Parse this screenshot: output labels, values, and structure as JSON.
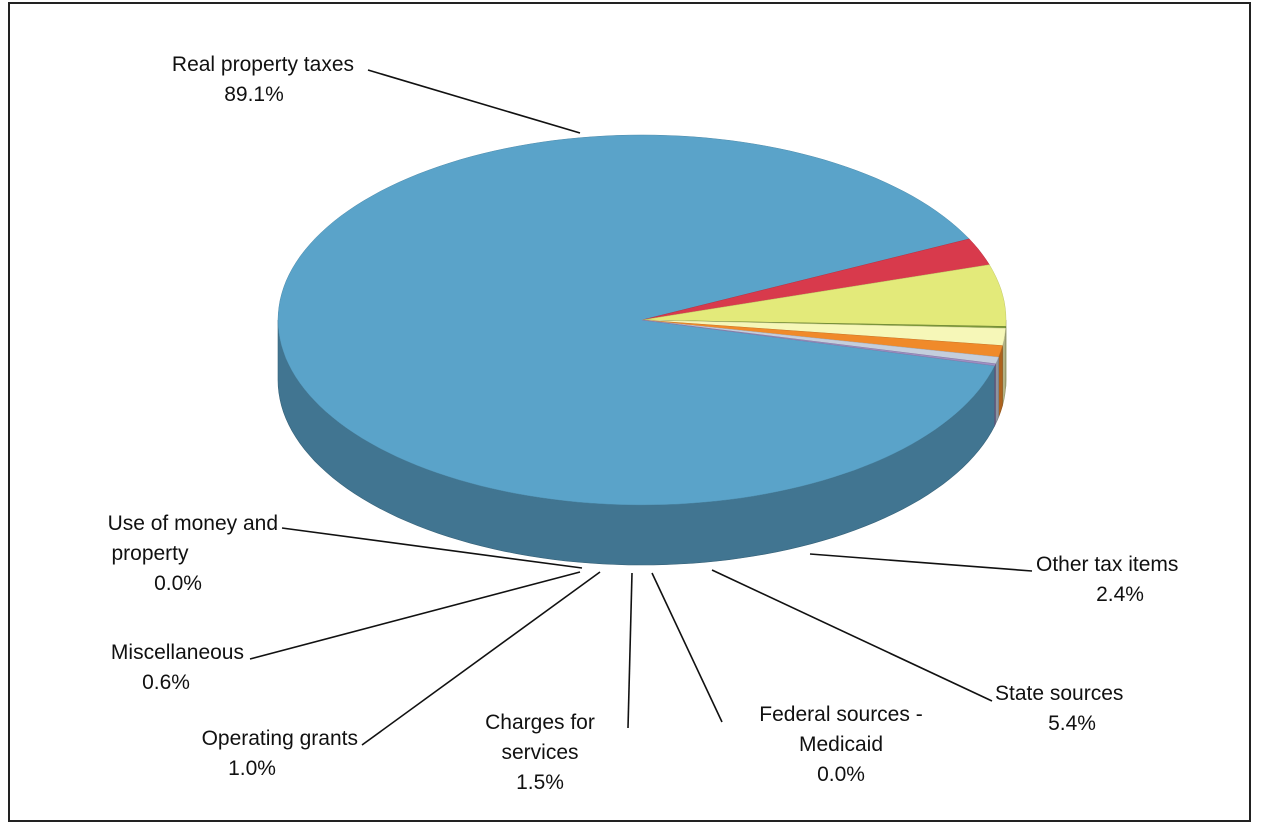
{
  "chart_data": {
    "type": "pie",
    "style": "3d",
    "slices": [
      {
        "label": "Real property taxes",
        "label_lines": [
          "Real property taxes"
        ],
        "value_label": "89.1%",
        "value": 89.1,
        "color": "#5aa3c9"
      },
      {
        "label": "Other tax items",
        "label_lines": [
          "Other tax items"
        ],
        "value_label": "2.4%",
        "value": 2.4,
        "color": "#d83a4c"
      },
      {
        "label": "State sources",
        "label_lines": [
          "State sources"
        ],
        "value_label": "5.4%",
        "value": 5.4,
        "color": "#e3ea7a"
      },
      {
        "label": "Federal sources - Medicaid",
        "label_lines": [
          "Federal sources -",
          "Medicaid"
        ],
        "value_label": "0.0%",
        "value": 0.0,
        "color": "#7e9a3c"
      },
      {
        "label": "Charges for services",
        "label_lines": [
          "Charges for",
          "services"
        ],
        "value_label": "1.5%",
        "value": 1.5,
        "color": "#f6f7b8"
      },
      {
        "label": "Operating grants",
        "label_lines": [
          "Operating grants"
        ],
        "value_label": "1.0%",
        "value": 1.0,
        "color": "#f08a2a"
      },
      {
        "label": "Miscellaneous",
        "label_lines": [
          "Miscellaneous"
        ],
        "value_label": "0.6%",
        "value": 0.6,
        "color": "#c4cedd"
      },
      {
        "label": "Use of money and property",
        "label_lines": [
          "Use of money and",
          "property"
        ],
        "value_label": "0.0%",
        "value": 0.0,
        "color": "#9f8fc4"
      }
    ]
  }
}
